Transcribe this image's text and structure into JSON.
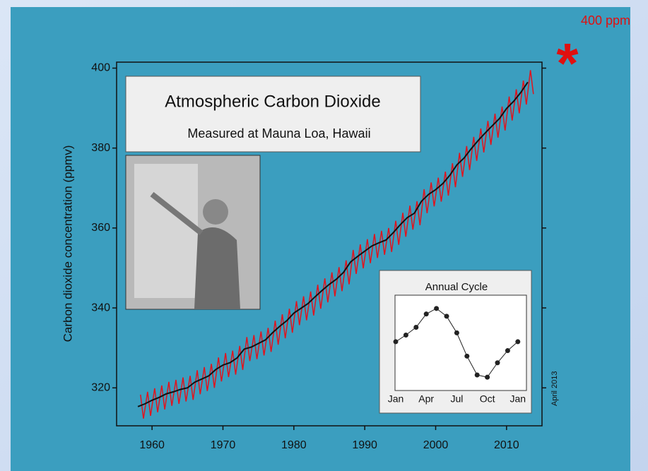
{
  "slide": {
    "marker": "*",
    "label": "400 ppm"
  },
  "chart_data": [
    {
      "type": "line",
      "title": "Atmospheric Carbon Dioxide",
      "subtitle": "Measured at Mauna Loa, Hawaii",
      "y_label": "Carbon dioxide concentration (ppmv)",
      "note": "April 2013",
      "xlim": [
        1955,
        2015
      ],
      "ylim": [
        310.5,
        401.5
      ],
      "xticks": [
        1960,
        1970,
        1980,
        1990,
        2000,
        2010
      ],
      "yticks": [
        320,
        340,
        360,
        380,
        400
      ],
      "series": [
        {
          "color": "#e0141e",
          "x": [
            1958.37,
            1958.79,
            1959.37,
            1959.79,
            1960.37,
            1960.79,
            1961.37,
            1961.79,
            1962.37,
            1962.79,
            1963.37,
            1963.79,
            1964.37,
            1964.79,
            1965.37,
            1965.79,
            1966.37,
            1966.79,
            1967.37,
            1967.79,
            1968.37,
            1968.79,
            1969.37,
            1969.79,
            1970.37,
            1970.79,
            1971.37,
            1971.79,
            1972.37,
            1972.79,
            1973.37,
            1973.79,
            1974.37,
            1974.79,
            1975.37,
            1975.79,
            1976.37,
            1976.79,
            1977.37,
            1977.79,
            1978.37,
            1978.79,
            1979.37,
            1979.79,
            1980.37,
            1980.79,
            1981.37,
            1981.79,
            1982.37,
            1982.79,
            1983.37,
            1983.79,
            1984.37,
            1984.79,
            1985.37,
            1985.79,
            1986.37,
            1986.79,
            1987.37,
            1987.79,
            1988.37,
            1988.79,
            1989.37,
            1989.79,
            1990.37,
            1990.79,
            1991.37,
            1991.79,
            1992.37,
            1992.79,
            1993.37,
            1993.79,
            1994.37,
            1994.79,
            1995.37,
            1995.79,
            1996.37,
            1996.79,
            1997.37,
            1997.79,
            1998.37,
            1998.79,
            1999.37,
            1999.79,
            2000.37,
            2000.79,
            2001.37,
            2001.79,
            2002.37,
            2002.79,
            2003.37,
            2003.79,
            2004.37,
            2004.79,
            2005.37,
            2005.79,
            2006.37,
            2006.79,
            2007.37,
            2007.79,
            2008.37,
            2008.79,
            2009.37,
            2009.79,
            2010.37,
            2010.79,
            2011.37,
            2011.79,
            2012.37,
            2012.79,
            2013.37,
            2013.79
          ],
          "values": [
            318.3,
            312.3,
            319.0,
            313.0,
            319.9,
            313.9,
            320.6,
            314.6,
            321.5,
            315.5,
            322.0,
            316.0,
            322.6,
            316.6,
            323.0,
            317.0,
            324.4,
            318.4,
            325.2,
            319.2,
            326.0,
            320.0,
            327.6,
            321.6,
            328.7,
            322.7,
            329.3,
            323.3,
            330.5,
            324.5,
            332.7,
            326.7,
            333.2,
            327.2,
            334.1,
            328.1,
            335.0,
            329.0,
            336.8,
            330.8,
            338.4,
            332.4,
            339.8,
            333.8,
            341.7,
            335.7,
            342.9,
            336.9,
            344.1,
            338.1,
            345.8,
            339.8,
            347.4,
            341.4,
            348.9,
            342.9,
            350.2,
            344.2,
            351.9,
            345.9,
            354.5,
            348.5,
            355.9,
            349.9,
            357.2,
            351.2,
            358.5,
            352.5,
            359.3,
            353.3,
            360.0,
            354.0,
            361.8,
            355.8,
            363.8,
            357.8,
            365.6,
            359.6,
            366.7,
            360.7,
            369.7,
            363.7,
            371.4,
            365.4,
            372.6,
            366.6,
            374.1,
            368.1,
            376.2,
            370.2,
            378.8,
            372.8,
            380.5,
            374.5,
            382.8,
            376.8,
            384.9,
            378.9,
            386.8,
            380.8,
            388.6,
            382.6,
            390.4,
            384.4,
            392.9,
            386.9,
            394.7,
            388.7,
            396.9,
            390.9,
            399.5,
            393.5
          ]
        },
        {
          "color": "#111111",
          "x": [
            1958,
            1959,
            1960,
            1961,
            1962,
            1963,
            1964,
            1965,
            1966,
            1967,
            1968,
            1969,
            1970,
            1971,
            1972,
            1973,
            1974,
            1975,
            1976,
            1977,
            1978,
            1979,
            1980,
            1981,
            1982,
            1983,
            1984,
            1985,
            1986,
            1987,
            1988,
            1989,
            1990,
            1991,
            1992,
            1993,
            1994,
            1995,
            1996,
            1997,
            1998,
            1999,
            2000,
            2001,
            2002,
            2003,
            2004,
            2005,
            2006,
            2007,
            2008,
            2009,
            2010,
            2011,
            2012,
            2013
          ],
          "values": [
            315.3,
            316.0,
            316.9,
            317.6,
            318.5,
            319.0,
            319.6,
            320.0,
            321.4,
            322.2,
            323.0,
            324.6,
            325.7,
            326.3,
            327.5,
            329.7,
            330.2,
            331.1,
            332.0,
            333.8,
            335.4,
            336.8,
            338.7,
            339.9,
            341.1,
            342.8,
            344.4,
            345.9,
            347.2,
            348.9,
            351.5,
            352.9,
            354.2,
            355.5,
            356.3,
            357.0,
            358.8,
            360.8,
            362.6,
            363.7,
            366.7,
            368.4,
            369.6,
            371.1,
            373.2,
            375.8,
            377.5,
            379.8,
            381.9,
            383.8,
            385.6,
            387.4,
            389.9,
            391.7,
            393.9,
            396.5
          ]
        }
      ]
    },
    {
      "type": "line",
      "title": "Annual Cycle",
      "categories": [
        "Jan",
        null,
        null,
        "Apr",
        null,
        null,
        "Jul",
        null,
        null,
        "Oct",
        null,
        null,
        "Jan"
      ],
      "values": [
        0,
        0.6,
        1.3,
        2.5,
        3.0,
        2.3,
        0.8,
        -1.3,
        -3.0,
        -3.2,
        -1.9,
        -0.8,
        0
      ],
      "ylim": [
        -4.4,
        4.2
      ],
      "color": "#222222"
    }
  ]
}
